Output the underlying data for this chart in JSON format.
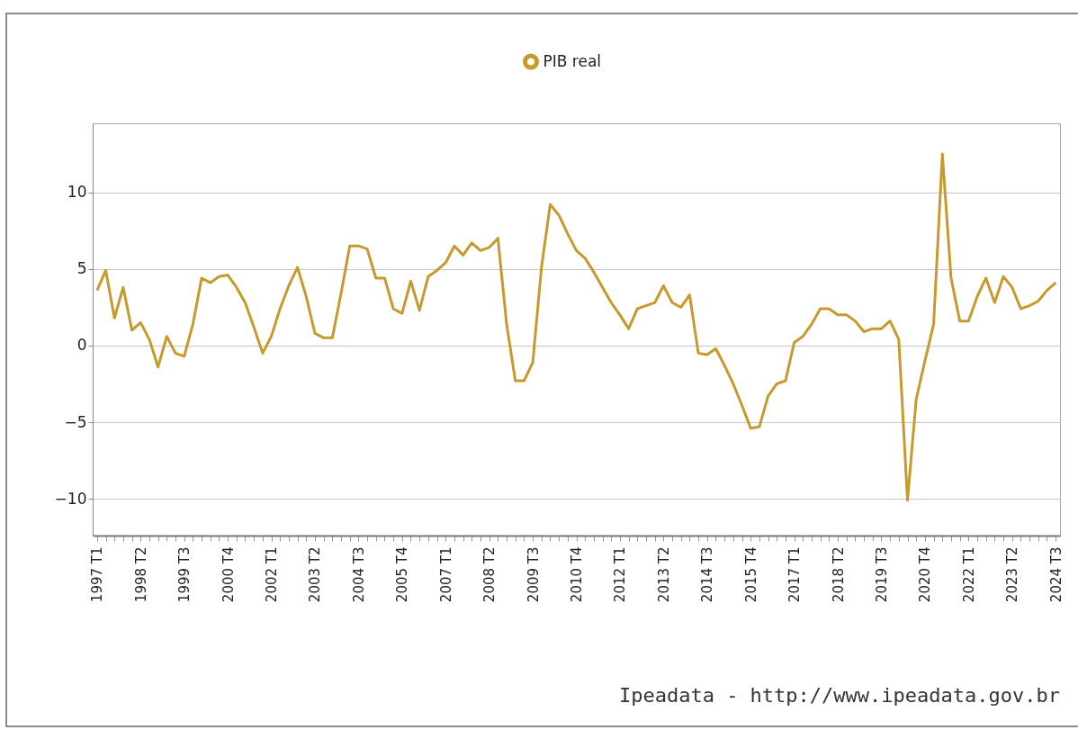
{
  "chart_data": {
    "type": "line",
    "categories": [
      "1997 T1",
      null,
      null,
      null,
      null,
      "1998 T2",
      null,
      null,
      null,
      null,
      "1999 T3",
      null,
      null,
      null,
      null,
      "2000 T4",
      null,
      null,
      null,
      null,
      "2002 T1",
      null,
      null,
      null,
      null,
      "2003 T2",
      null,
      null,
      null,
      null,
      "2004 T3",
      null,
      null,
      null,
      null,
      "2005 T4",
      null,
      null,
      null,
      null,
      "2007 T1",
      null,
      null,
      null,
      null,
      "2008 T2",
      null,
      null,
      null,
      null,
      "2009 T3",
      null,
      null,
      null,
      null,
      "2010 T4",
      null,
      null,
      null,
      null,
      "2012 T1",
      null,
      null,
      null,
      null,
      "2013 T2",
      null,
      null,
      null,
      null,
      "2014 T3",
      null,
      null,
      null,
      null,
      "2015 T4",
      null,
      null,
      null,
      null,
      "2017 T1",
      null,
      null,
      null,
      null,
      "2018 T2",
      null,
      null,
      null,
      null,
      "2019 T3",
      null,
      null,
      null,
      null,
      "2020 T4",
      null,
      null,
      null,
      null,
      "2022 T1",
      null,
      null,
      null,
      null,
      "2023 T2",
      null,
      null,
      null,
      null,
      "2024 T3"
    ],
    "series": [
      {
        "name": "PIB real",
        "color": "#c89a2e",
        "values": [
          3.6,
          4.9,
          1.8,
          3.8,
          1.0,
          1.5,
          0.4,
          -1.4,
          0.6,
          -0.5,
          -0.7,
          1.4,
          4.4,
          4.1,
          4.5,
          4.6,
          3.8,
          2.8,
          1.2,
          -0.5,
          0.6,
          2.4,
          3.9,
          5.1,
          3.2,
          0.8,
          0.5,
          0.5,
          3.4,
          6.5,
          6.5,
          6.3,
          4.4,
          4.4,
          2.4,
          2.1,
          4.2,
          2.3,
          4.5,
          4.9,
          5.4,
          6.5,
          5.9,
          6.7,
          6.2,
          6.4,
          7.0,
          1.4,
          -2.3,
          -2.3,
          -1.1,
          5.1,
          9.2,
          8.5,
          7.3,
          6.2,
          5.7,
          4.8,
          3.8,
          2.8,
          2.0,
          1.1,
          2.4,
          2.6,
          2.8,
          3.9,
          2.8,
          2.5,
          3.3,
          -0.5,
          -0.6,
          -0.2,
          -1.3,
          -2.5,
          -3.9,
          -5.4,
          -5.3,
          -3.3,
          -2.5,
          -2.3,
          0.2,
          0.6,
          1.4,
          2.4,
          2.4,
          2.0,
          2.0,
          1.6,
          0.9,
          1.1,
          1.1,
          1.6,
          0.4,
          -10.1,
          -3.5,
          -1.0,
          1.4,
          12.5,
          4.4,
          1.6,
          1.6,
          3.2,
          4.4,
          2.8,
          4.5,
          3.8,
          2.4,
          2.6,
          2.9,
          3.6,
          4.1
        ]
      }
    ],
    "ylim": [
      -12.4,
      14.5
    ],
    "yticks": [
      -10,
      -5,
      0,
      5,
      10
    ],
    "grid": "y",
    "legend": "top",
    "annotations": [
      "Ipeadata - http://www.ipeadata.gov.br"
    ]
  }
}
